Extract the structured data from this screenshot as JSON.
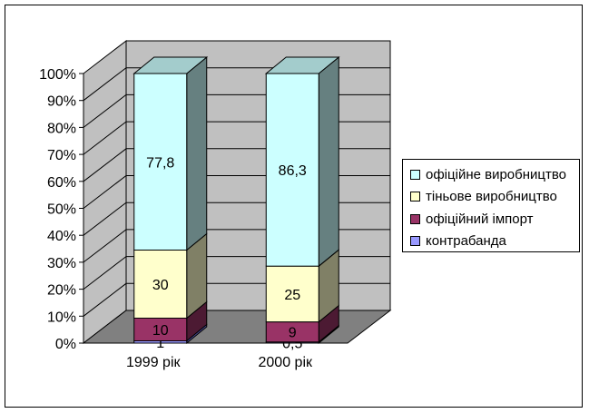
{
  "chart_data": {
    "type": "bar",
    "stacked": "percent",
    "style": "3d",
    "categories": [
      "1999 рік",
      "2000 рік"
    ],
    "series": [
      {
        "name": "контрабанда",
        "values": [
          1,
          0.5
        ],
        "labels": [
          "1",
          "0,5"
        ],
        "color": "#9999ff",
        "side_color": "#4d4d99"
      },
      {
        "name": "офіційний імпорт",
        "values": [
          10,
          9
        ],
        "labels": [
          "10",
          "9"
        ],
        "color": "#993366",
        "side_color": "#4c1a33"
      },
      {
        "name": "тіньове виробництво",
        "values": [
          30,
          25
        ],
        "labels": [
          "30",
          "25"
        ],
        "color": "#ffffcc",
        "side_color": "#808066"
      },
      {
        "name": "офіційне виробництво",
        "values": [
          77.8,
          86.3
        ],
        "labels": [
          "77,8",
          "86,3"
        ],
        "color": "#ccffff",
        "side_color": "#668080",
        "top_color": "#a3cccc"
      }
    ],
    "y_ticks": [
      "0%",
      "10%",
      "20%",
      "30%",
      "40%",
      "50%",
      "60%",
      "70%",
      "80%",
      "90%",
      "100%"
    ],
    "ylim": [
      0,
      100
    ],
    "grid": true,
    "legend_position": "right",
    "legend_order": [
      "офіційне виробництво",
      "тіньове виробництво",
      "офіційний імпорт",
      "контрабанда"
    ],
    "colors": {
      "wall": "#c0c0c0",
      "floor": "#808080"
    }
  }
}
